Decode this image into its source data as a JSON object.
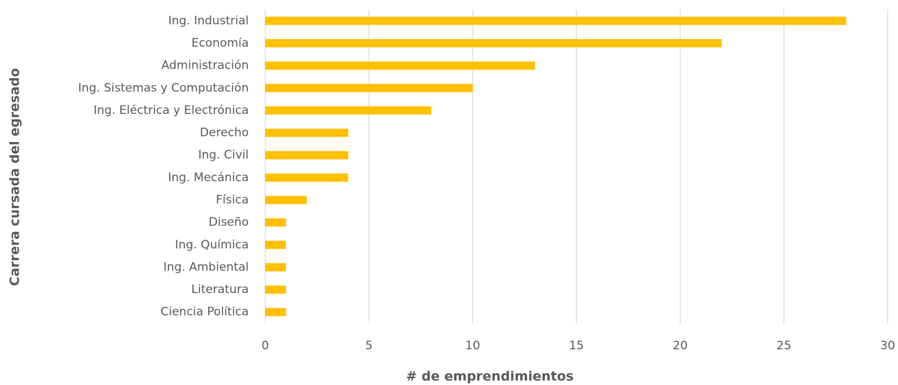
{
  "chart_data": {
    "type": "bar",
    "orientation": "horizontal",
    "x_label": "# de emprendimientos",
    "y_label": "Carrera cursada del egresado",
    "categories": [
      "Ing. Industrial",
      "Economía",
      "Administración",
      "Ing. Sistemas y Computación",
      "Ing. Eléctrica y Electrónica",
      "Derecho",
      "Ing. Civil",
      "Ing. Mecánica",
      "Física",
      "Diseño",
      "Ing. Química",
      "Ing. Ambiental",
      "Literatura",
      "Ciencia Política"
    ],
    "values": [
      28,
      22,
      13,
      10,
      8,
      4,
      4,
      4,
      2,
      1,
      1,
      1,
      1,
      1
    ],
    "color": "#ffc000",
    "xlim": [
      0,
      30
    ],
    "xticks": [
      0,
      5,
      10,
      15,
      20,
      25,
      30
    ],
    "grid": true
  }
}
